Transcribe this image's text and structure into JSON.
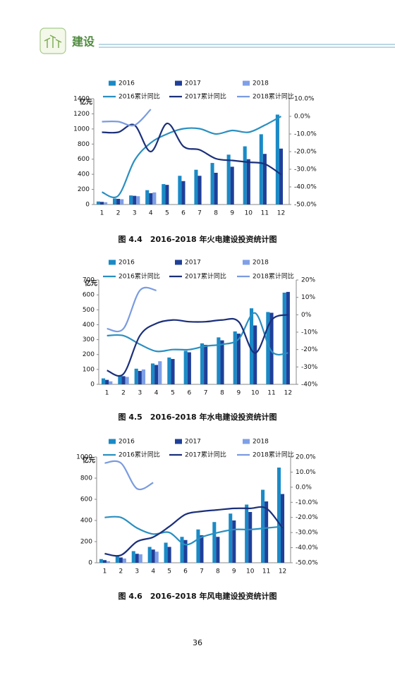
{
  "header": {
    "title": "建设"
  },
  "chart_data": [
    {
      "type": "bar",
      "title": "图 4.4　2016-2018 年火电建设投资统计图",
      "ylabel": "亿元",
      "categories": [
        "1",
        "2",
        "3",
        "4",
        "5",
        "6",
        "7",
        "8",
        "9",
        "10",
        "11",
        "12"
      ],
      "series": [
        {
          "name": "2016",
          "type": "bar",
          "color": "#1a8ac6",
          "values": [
            40,
            80,
            120,
            190,
            270,
            380,
            460,
            550,
            660,
            770,
            930,
            1190
          ]
        },
        {
          "name": "2017",
          "type": "bar",
          "color": "#1f3f99",
          "values": [
            35,
            75,
            115,
            150,
            260,
            310,
            380,
            420,
            500,
            600,
            670,
            740
          ]
        },
        {
          "name": "2018",
          "type": "bar",
          "color": "#7f9fe8",
          "values": [
            30,
            70,
            110,
            160,
            null,
            null,
            null,
            null,
            null,
            null,
            null,
            null
          ]
        },
        {
          "name": "2016累计同比",
          "type": "line",
          "axis": "y2",
          "color": "#2a8fc0",
          "values": [
            -43,
            -45,
            -25,
            -15,
            -10,
            -7,
            -7,
            -10,
            -8,
            -9,
            -5,
            0
          ]
        },
        {
          "name": "2017累计同比",
          "type": "line",
          "axis": "y2",
          "color": "#1b2f7a",
          "values": [
            -9,
            -9,
            -5,
            -20,
            -4,
            -17,
            -19,
            -24,
            -25,
            -26,
            -27,
            -33
          ]
        },
        {
          "name": "2018累计同比",
          "type": "line",
          "axis": "y2",
          "color": "#7a9be0",
          "values": [
            -3,
            -3,
            -5,
            4,
            null,
            null,
            null,
            null,
            null,
            null,
            null,
            null
          ]
        }
      ],
      "ylim": [
        0,
        1400
      ],
      "yticks": [
        0,
        200,
        400,
        600,
        800,
        1000,
        1200,
        1400
      ],
      "y2lim": [
        -50,
        10
      ],
      "y2ticks": [
        {
          "value": 10,
          "label": "10.0%"
        },
        {
          "value": 0,
          "label": "0.0%"
        },
        {
          "value": -10,
          "label": "-10.0%"
        },
        {
          "value": -20,
          "label": "-20.0%"
        },
        {
          "value": -30,
          "label": "-30.0%"
        },
        {
          "value": -40,
          "label": "-40.0%"
        },
        {
          "value": -50,
          "label": "-50.0%"
        }
      ]
    },
    {
      "type": "bar",
      "title": "图 4.5　2016-2018 年水电建设投资统计图",
      "ylabel": "亿元",
      "categories": [
        "1",
        "2",
        "3",
        "4",
        "5",
        "6",
        "7",
        "8",
        "9",
        "10",
        "11",
        "12"
      ],
      "series": [
        {
          "name": "2016",
          "type": "bar",
          "color": "#1a8ac6",
          "values": [
            40,
            60,
            105,
            140,
            180,
            225,
            275,
            315,
            355,
            510,
            485,
            615
          ]
        },
        {
          "name": "2017",
          "type": "bar",
          "color": "#1f3f99",
          "values": [
            30,
            55,
            90,
            130,
            170,
            215,
            265,
            295,
            340,
            395,
            480,
            620
          ]
        },
        {
          "name": "2018",
          "type": "bar",
          "color": "#7f9fe8",
          "values": [
            20,
            50,
            100,
            155,
            null,
            null,
            null,
            null,
            null,
            null,
            null,
            null
          ]
        },
        {
          "name": "2016累计同比",
          "type": "line",
          "axis": "y2",
          "color": "#2a8fc0",
          "values": [
            -12,
            -12,
            -17,
            -21,
            -20,
            -20,
            -18,
            -17,
            -14,
            1,
            -21,
            -22
          ]
        },
        {
          "name": "2017累计同比",
          "type": "line",
          "axis": "y2",
          "color": "#1b2f7a",
          "values": [
            -32,
            -34,
            -12,
            -5,
            -3,
            -4,
            -4,
            -3,
            -4,
            -22,
            -3,
            0
          ]
        },
        {
          "name": "2018累计同比",
          "type": "line",
          "axis": "y2",
          "color": "#7a9be0",
          "values": [
            -8,
            -8,
            14,
            14,
            null,
            null,
            null,
            null,
            null,
            null,
            null,
            null
          ]
        }
      ],
      "ylim": [
        0,
        700
      ],
      "yticks": [
        0,
        100,
        200,
        300,
        400,
        500,
        600,
        700
      ],
      "y2lim": [
        -40,
        20
      ],
      "y2ticks": [
        {
          "value": 20,
          "label": "20%"
        },
        {
          "value": 10,
          "label": "10%"
        },
        {
          "value": 0,
          "label": "0%"
        },
        {
          "value": -10,
          "label": "-10%"
        },
        {
          "value": -20,
          "label": "-20%"
        },
        {
          "value": -30,
          "label": "-30%"
        },
        {
          "value": -40,
          "label": "-40%"
        }
      ]
    },
    {
      "type": "bar",
      "title": "图 4.6　2016-2018 年风电建设投资统计图",
      "ylabel": "亿元",
      "categories": [
        "1",
        "2",
        "3",
        "4",
        "5",
        "6",
        "7",
        "8",
        "9",
        "10",
        "11",
        "12"
      ],
      "series": [
        {
          "name": "2016",
          "type": "bar",
          "color": "#1a8ac6",
          "values": [
            35,
            70,
            110,
            150,
            190,
            245,
            315,
            385,
            465,
            550,
            690,
            900
          ]
        },
        {
          "name": "2017",
          "type": "bar",
          "color": "#1f3f99",
          "values": [
            25,
            50,
            85,
            125,
            150,
            215,
            260,
            245,
            400,
            480,
            580,
            650
          ]
        },
        {
          "name": "2018",
          "type": "bar",
          "color": "#7f9fe8",
          "values": [
            15,
            40,
            80,
            105,
            null,
            null,
            null,
            null,
            null,
            null,
            null,
            null
          ]
        },
        {
          "name": "2016累计同比",
          "type": "line",
          "axis": "y2",
          "color": "#2a8fc0",
          "values": [
            -20,
            -20,
            -27,
            -31,
            -30,
            -38,
            -33,
            -30,
            -28,
            -28,
            -27,
            -26
          ]
        },
        {
          "name": "2017累计同比",
          "type": "line",
          "axis": "y2",
          "color": "#1b2f7a",
          "values": [
            -44,
            -45,
            -36,
            -33,
            -26,
            -18,
            -16,
            -15,
            -14,
            -14,
            -14,
            -27
          ]
        },
        {
          "name": "2018累计同比",
          "type": "line",
          "axis": "y2",
          "color": "#7a9be0",
          "values": [
            16,
            16,
            -1,
            3,
            null,
            null,
            null,
            null,
            null,
            null,
            null,
            null
          ]
        }
      ],
      "ylim": [
        0,
        1000
      ],
      "yticks": [
        0,
        200,
        400,
        600,
        800,
        1000
      ],
      "y2lim": [
        -50,
        20
      ],
      "y2ticks": [
        {
          "value": 20,
          "label": "20.0%"
        },
        {
          "value": 10,
          "label": "10.0%"
        },
        {
          "value": 0,
          "label": "0.0%"
        },
        {
          "value": -10,
          "label": "-10.0%"
        },
        {
          "value": -20,
          "label": "-20.0%"
        },
        {
          "value": -30,
          "label": "-30.0%"
        },
        {
          "value": -40,
          "label": "-40.0%"
        },
        {
          "value": -50,
          "label": "-50.0%"
        }
      ]
    }
  ],
  "page_number": "36"
}
